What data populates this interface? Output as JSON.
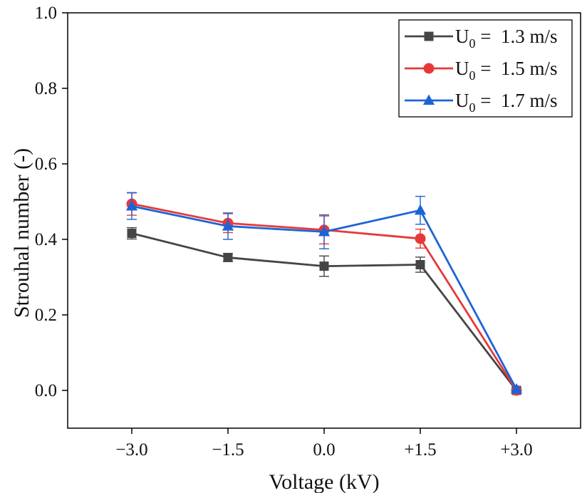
{
  "chart_data": {
    "type": "line",
    "title": "",
    "xlabel": "Voltage (kV)",
    "ylabel": "Strouhal number (-)",
    "categories": [
      "−3.0",
      "−1.5",
      "0.0",
      "+1.5",
      "+3.0"
    ],
    "x": [
      -3.0,
      -1.5,
      0.0,
      1.5,
      3.0
    ],
    "xlim": [
      -4.0,
      4.0
    ],
    "ylim": [
      -0.1,
      1.0
    ],
    "yticks": [
      0.0,
      0.2,
      0.4,
      0.6,
      0.8,
      1.0
    ],
    "ytick_labels": [
      "0.0",
      "0.2",
      "0.4",
      "0.6",
      "0.8",
      "1.0"
    ],
    "legend_position": "top-right",
    "series": [
      {
        "name_main": "U",
        "name_sub": "0",
        "name_rest": " =  1.3 m/s",
        "color": "#454545",
        "marker": "square",
        "values": [
          0.416,
          0.352,
          0.329,
          0.333,
          0.0
        ],
        "errors": [
          0.015,
          0.01,
          0.027,
          0.02,
          0.004
        ]
      },
      {
        "name_main": "U",
        "name_sub": "0",
        "name_rest": " =  1.5 m/s",
        "color": "#e53939",
        "marker": "circle",
        "values": [
          0.494,
          0.443,
          0.425,
          0.402,
          0.0
        ],
        "errors": [
          0.03,
          0.025,
          0.037,
          0.025,
          0.004
        ]
      },
      {
        "name_main": "U",
        "name_sub": "0",
        "name_rest": " =  1.7 m/s",
        "color": "#1c64d6",
        "marker": "triangle",
        "values": [
          0.488,
          0.435,
          0.42,
          0.477,
          0.003
        ],
        "errors": [
          0.035,
          0.035,
          0.045,
          0.037,
          0.004
        ]
      }
    ]
  }
}
